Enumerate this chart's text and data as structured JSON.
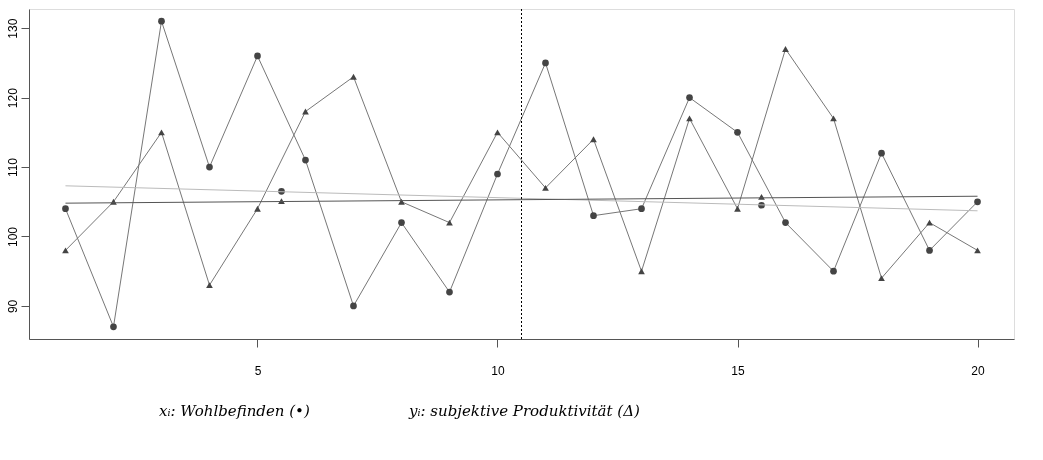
{
  "chart_data": {
    "type": "line",
    "x": [
      1,
      2,
      3,
      4,
      5,
      6,
      7,
      8,
      9,
      10,
      11,
      12,
      13,
      14,
      15,
      16,
      17,
      18,
      19,
      20
    ],
    "series": [
      {
        "color": "#444444",
        "marker": "circle",
        "values": [
          104,
          87,
          131,
          110,
          126,
          111,
          90,
          102,
          92,
          109,
          125,
          103,
          104,
          120,
          115,
          102,
          95,
          112,
          98,
          105
        ]
      },
      {
        "color": "#444444",
        "marker": "triangle",
        "values": [
          98,
          105,
          115,
          93,
          104,
          118,
          123,
          105,
          102,
          115,
          107,
          114,
          95,
          117,
          104,
          127,
          117,
          94,
          102,
          98
        ]
      },
      {
        "type": "scatter",
        "color": "#444444",
        "marker": "circle",
        "x": [
          5.5,
          15.5
        ],
        "values": [
          106.5,
          104.5
        ]
      },
      {
        "type": "scatter",
        "color": "#444444",
        "marker": "triangle",
        "x": [
          5.5,
          15.5
        ],
        "values": [
          105.1,
          105.7
        ]
      },
      {
        "type": "line",
        "color": "#bbbbbb",
        "marker": "none",
        "x": [
          1,
          20
        ],
        "values": [
          107.3,
          103.7
        ]
      },
      {
        "type": "line",
        "color": "#555555",
        "marker": "none",
        "x": [
          1,
          20
        ],
        "values": [
          104.8,
          105.8
        ]
      }
    ],
    "xlim": [
      0.24,
      20.76
    ],
    "ylim": [
      85.24,
      132.76
    ],
    "xticks": [
      5,
      10,
      15,
      20
    ],
    "yticks": [
      90,
      100,
      110,
      120,
      130
    ],
    "ref_lines": [
      {
        "axis": "x",
        "value": 10.5,
        "line_style": "dotted",
        "color": "#000000"
      }
    ],
    "annotations": [
      "xᵢ:   Wohlbefinden (•)",
      "yᵢ:   subjektive Produktivität (Δ)"
    ],
    "grid": false
  }
}
